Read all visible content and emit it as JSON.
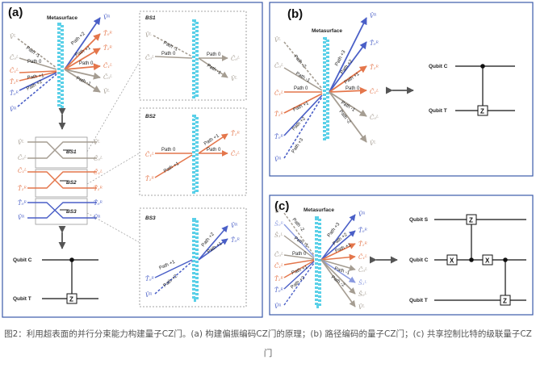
{
  "panels": {
    "a": {
      "label": "(a)"
    },
    "b": {
      "label": "(b)"
    },
    "c": {
      "label": "(c)"
    }
  },
  "labels": {
    "metasurface": "Metasurface",
    "path_m2": "Path -2",
    "path_m1": "Path -1",
    "path_0": "Path 0",
    "path_p1": "Path +1",
    "path_p2": "Path +2",
    "path_p3": "Path +3",
    "bs1": "BS1",
    "bs2": "BS2",
    "bs3": "BS3",
    "qubit_c": "Qubit C",
    "qubit_t": "Qubit T",
    "qubit_s": "Qubit S",
    "gate_z": "Z",
    "gate_x": "X"
  },
  "symbols": {
    "VL": "V̂ᴸ",
    "VR": "V̂ᴿ",
    "C0L": "Ĉ₀ᴸ",
    "C1L": "Ĉ₁ᴸ",
    "T0R": "T̂₀ᴿ",
    "T1R": "T̂₁ᴿ",
    "S0R": "Ŝ₀ᴿ",
    "S1L": "Ŝ₁ᴸ",
    "S0L": "Ŝ₀ᴸ",
    "S1R": "Ŝ₁ᴿ"
  },
  "colors": {
    "blue": "#4a5fc7",
    "orange": "#e4764b",
    "gray": "#a59d92",
    "cyan": "#5ad0e8",
    "panel_border": "#3b5aa9",
    "dash_border": "#888888"
  },
  "caption": "图2：利用超表面的并行分束能力构建量子CZ门。(a) 构建偏振编码CZ门的原理；(b) 路径编码的量子CZ门；(c) 共享控制比特的级联量子CZ门"
}
